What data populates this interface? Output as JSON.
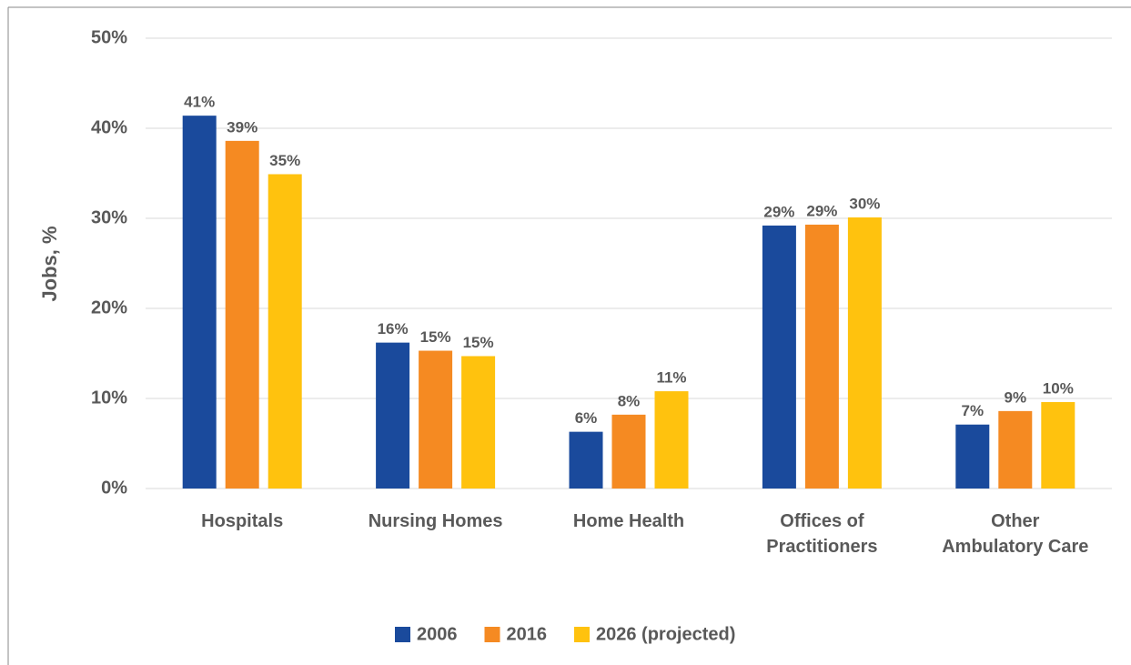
{
  "chart_data": {
    "type": "bar",
    "y_label": "Jobs, %",
    "categories": [
      "Hospitals",
      "Nursing Homes",
      "Home Health",
      "Offices of Practitioners",
      "Other Ambulatory Care"
    ],
    "series": [
      {
        "name": "2006",
        "color": "#1a4a9c",
        "values": [
          41.4,
          16.2,
          6.3,
          29.2,
          7.1
        ],
        "value_labels": [
          "41%",
          "16%",
          "6%",
          "29%",
          "7%"
        ]
      },
      {
        "name": "2016",
        "color": "#f58a22",
        "values": [
          38.6,
          15.3,
          8.2,
          29.3,
          8.6
        ],
        "value_labels": [
          "39%",
          "15%",
          "8%",
          "29%",
          "9%"
        ]
      },
      {
        "name": "2026 (projected)",
        "color": "#ffc20e",
        "values": [
          34.9,
          14.7,
          10.8,
          30.1,
          9.6
        ],
        "value_labels": [
          "35%",
          "15%",
          "11%",
          "30%",
          "10%"
        ]
      }
    ],
    "ylim": [
      0,
      50
    ],
    "yticks": [
      {
        "value": 0,
        "label": "0%"
      },
      {
        "value": 10,
        "label": "10%"
      },
      {
        "value": 20,
        "label": "20%"
      },
      {
        "value": 30,
        "label": "30%"
      },
      {
        "value": 40,
        "label": "40%"
      },
      {
        "value": 50,
        "label": "50%"
      }
    ],
    "grid": true,
    "legend": "bottom"
  }
}
